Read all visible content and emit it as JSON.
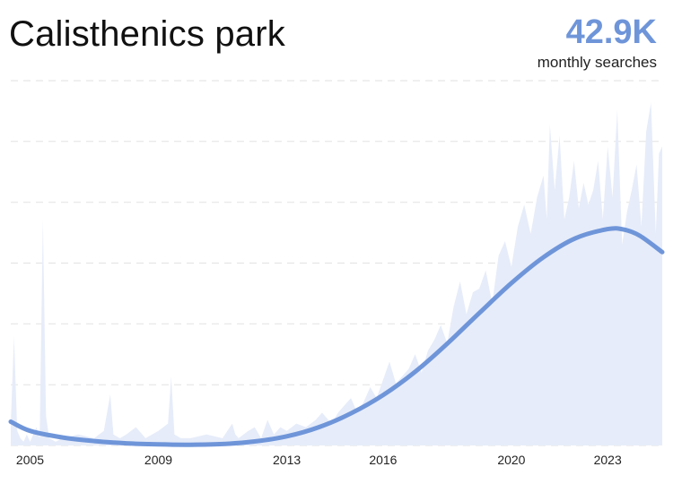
{
  "header": {
    "title": "Calisthenics park",
    "stat_value": "42.9K",
    "stat_label": "monthly searches"
  },
  "colors": {
    "trend_line": "#6f95d9",
    "area_fill": "#e6ecf9",
    "grid": "#e2e2e2"
  },
  "chart_data": {
    "type": "area",
    "title": "Calisthenics park",
    "x_ticks": [
      "2005",
      "2009",
      "2013",
      "2016",
      "2020",
      "2023"
    ],
    "x_tick_years": [
      2005,
      2009,
      2013,
      2016,
      2020,
      2023
    ],
    "xlim": [
      2004.4,
      2024.7
    ],
    "ylim": [
      0,
      100
    ],
    "grid": "horizontal-dashed",
    "series": [
      {
        "role": "search-volume-area",
        "x": [
          2004.4,
          2004.5,
          2004.6,
          2004.7,
          2004.8,
          2004.9,
          2005.0,
          2005.2,
          2005.3,
          2005.4,
          2005.5,
          2005.6,
          2005.8,
          2006.0,
          2006.5,
          2007.0,
          2007.3,
          2007.5,
          2007.6,
          2007.8,
          2008.0,
          2008.3,
          2008.6,
          2009.0,
          2009.3,
          2009.4,
          2009.5,
          2009.7,
          2010.0,
          2010.5,
          2011.0,
          2011.3,
          2011.4,
          2011.5,
          2011.8,
          2012.0,
          2012.2,
          2012.4,
          2012.6,
          2012.8,
          2013.0,
          2013.3,
          2013.6,
          2013.9,
          2014.1,
          2014.4,
          2014.6,
          2014.8,
          2015.0,
          2015.2,
          2015.4,
          2015.6,
          2015.8,
          2016.0,
          2016.2,
          2016.4,
          2016.6,
          2016.8,
          2017.0,
          2017.2,
          2017.4,
          2017.6,
          2017.8,
          2018.0,
          2018.2,
          2018.4,
          2018.6,
          2018.8,
          2019.0,
          2019.2,
          2019.4,
          2019.6,
          2019.8,
          2020.0,
          2020.2,
          2020.4,
          2020.6,
          2020.8,
          2021.0,
          2021.1,
          2021.2,
          2021.35,
          2021.5,
          2021.65,
          2021.8,
          2021.95,
          2022.1,
          2022.25,
          2022.4,
          2022.55,
          2022.7,
          2022.85,
          2023.0,
          2023.15,
          2023.3,
          2023.45,
          2023.6,
          2023.75,
          2023.9,
          2024.05,
          2024.2,
          2024.35,
          2024.5,
          2024.6,
          2024.7
        ],
        "values": [
          6,
          30,
          4,
          2,
          1,
          3,
          1,
          5,
          2,
          62,
          8,
          2,
          1,
          2,
          3,
          2,
          4,
          14,
          3,
          2,
          3,
          5,
          2,
          4,
          6,
          19,
          3,
          2,
          2,
          3,
          2,
          6,
          3,
          2,
          4,
          5,
          2,
          7,
          3,
          5,
          4,
          6,
          5,
          7,
          9,
          6,
          9,
          11,
          13,
          9,
          12,
          16,
          13,
          18,
          23,
          17,
          19,
          21,
          25,
          20,
          26,
          29,
          33,
          28,
          38,
          45,
          36,
          42,
          43,
          48,
          39,
          52,
          56,
          49,
          60,
          66,
          58,
          68,
          74,
          62,
          88,
          70,
          85,
          62,
          68,
          78,
          65,
          72,
          66,
          70,
          78,
          62,
          82,
          68,
          92,
          55,
          64,
          70,
          77,
          60,
          86,
          94,
          58,
          80,
          82
        ],
        "note": "relative search interest (0-100), estimated"
      },
      {
        "role": "trend-line",
        "x": [
          2004.4,
          2005,
          2006,
          2007,
          2008,
          2009,
          2010,
          2011,
          2012,
          2013,
          2014,
          2015,
          2016,
          2017,
          2018,
          2019,
          2020,
          2021,
          2022,
          2023,
          2023.5,
          2024,
          2024.7
        ],
        "values": [
          6.5,
          4,
          2.2,
          1.2,
          0.6,
          0.3,
          0.2,
          0.4,
          1.1,
          2.5,
          5,
          8.8,
          13.8,
          20.2,
          27.9,
          36.3,
          44.5,
          51.6,
          56.8,
          59.3,
          59.2,
          57.5,
          53
        ],
        "note": "smoothed trend, estimated"
      }
    ]
  }
}
